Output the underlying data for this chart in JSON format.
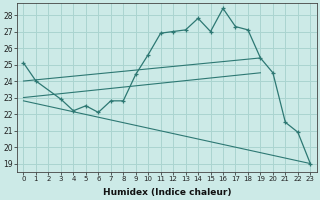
{
  "xlabel": "Humidex (Indice chaleur)",
  "background_color": "#cceae7",
  "grid_color": "#aad4d0",
  "line_color": "#2d7873",
  "xlim": [
    -0.5,
    23.5
  ],
  "ylim": [
    18.5,
    28.7
  ],
  "yticks": [
    19,
    20,
    21,
    22,
    23,
    24,
    25,
    26,
    27,
    28
  ],
  "xticks": [
    0,
    1,
    2,
    3,
    4,
    5,
    6,
    7,
    8,
    9,
    10,
    11,
    12,
    13,
    14,
    15,
    16,
    17,
    18,
    19,
    20,
    21,
    22,
    23
  ],
  "main_curve": {
    "x": [
      0,
      1,
      3,
      4,
      5,
      6,
      7,
      8,
      9,
      10,
      11,
      12,
      13,
      14,
      15,
      16,
      17,
      18,
      19,
      20,
      21,
      22,
      23
    ],
    "y": [
      25.1,
      24.0,
      22.9,
      22.2,
      22.5,
      22.1,
      22.8,
      22.8,
      24.4,
      25.6,
      26.9,
      27.0,
      27.1,
      27.8,
      27.0,
      28.4,
      27.3,
      27.1,
      25.4,
      24.5,
      21.5,
      20.9,
      19.0
    ]
  },
  "line1": {
    "x": [
      0,
      19
    ],
    "y": [
      24.0,
      25.4
    ]
  },
  "line2": {
    "x": [
      0,
      19
    ],
    "y": [
      23.0,
      24.5
    ]
  },
  "line3": {
    "x": [
      0,
      23
    ],
    "y": [
      22.8,
      19.0
    ]
  }
}
